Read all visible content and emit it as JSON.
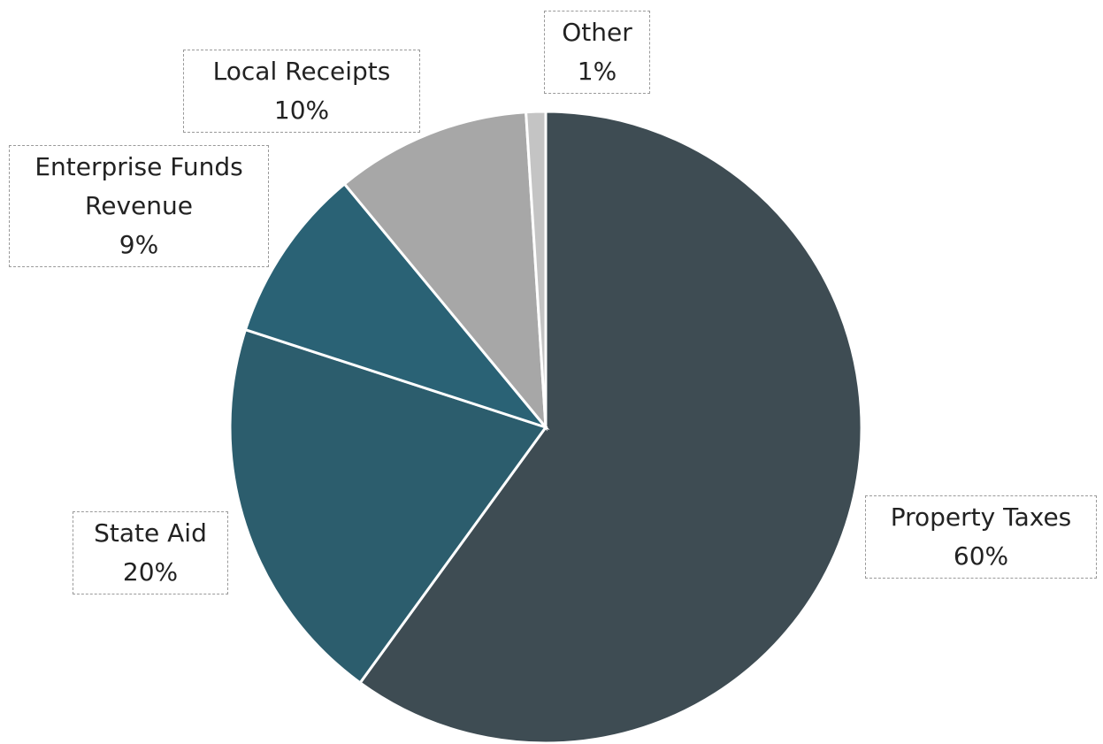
{
  "chart_data": {
    "type": "pie",
    "categories": [
      "Property Taxes",
      "State Aid",
      "Enterprise Funds Revenue",
      "Local Receipts",
      "Other"
    ],
    "values": [
      60,
      20,
      9,
      10,
      1
    ],
    "value_labels": [
      "60%",
      "20%",
      "9%",
      "10%",
      "1%"
    ],
    "colors": [
      "#3e4c53",
      "#2c5d6d",
      "#2a6275",
      "#a7a7a7",
      "#c4c4c4"
    ]
  }
}
